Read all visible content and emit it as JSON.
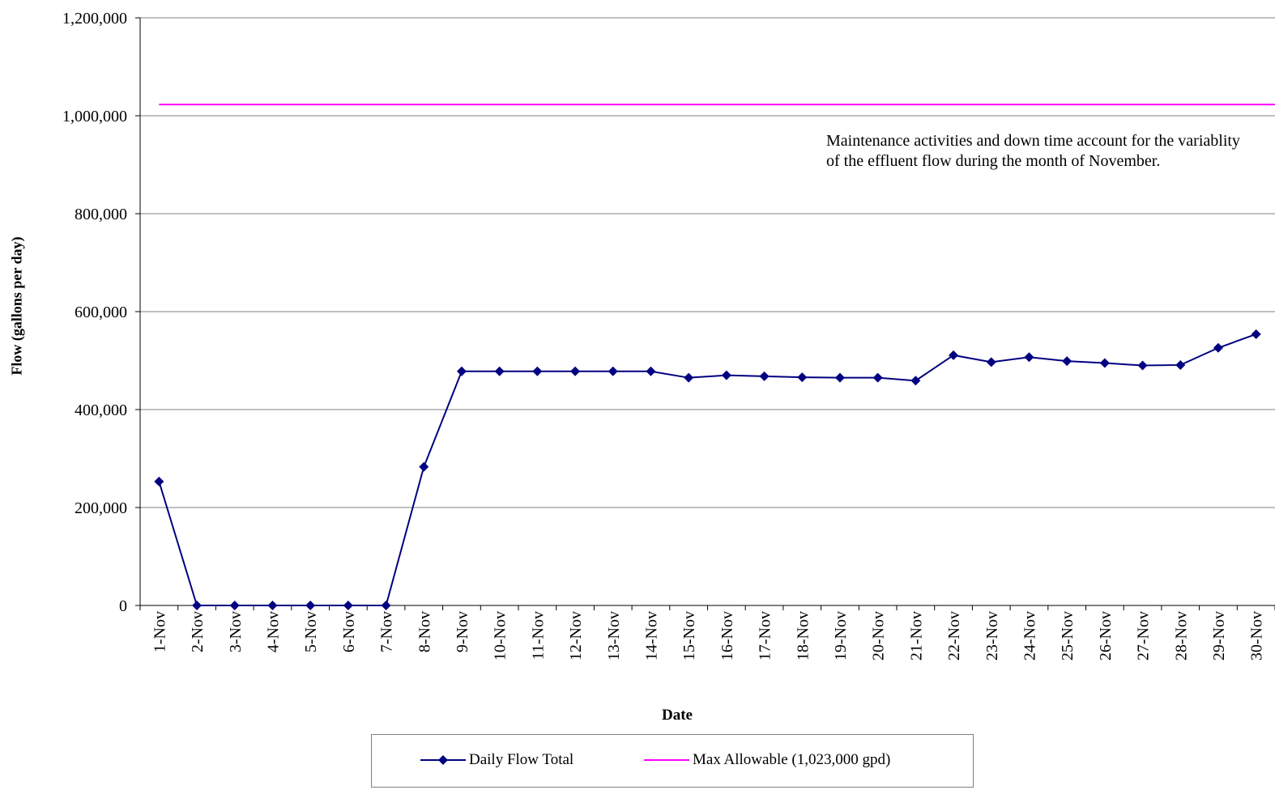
{
  "chart_data": {
    "type": "line",
    "xlabel": "Date",
    "ylabel": "Flow (gallons per day)",
    "ylim": [
      0,
      1200000
    ],
    "yticks": [
      "0",
      "200,000",
      "400,000",
      "600,000",
      "800,000",
      "1,000,000",
      "1,200,000"
    ],
    "ytick_values": [
      0,
      200000,
      400000,
      600000,
      800000,
      1000000,
      1200000
    ],
    "categories": [
      "1-Nov",
      "2-Nov",
      "3-Nov",
      "4-Nov",
      "5-Nov",
      "6-Nov",
      "7-Nov",
      "8-Nov",
      "9-Nov",
      "10-Nov",
      "11-Nov",
      "12-Nov",
      "13-Nov",
      "14-Nov",
      "15-Nov",
      "16-Nov",
      "17-Nov",
      "18-Nov",
      "19-Nov",
      "20-Nov",
      "21-Nov",
      "22-Nov",
      "23-Nov",
      "24-Nov",
      "25-Nov",
      "26-Nov",
      "27-Nov",
      "28-Nov",
      "29-Nov",
      "30-Nov"
    ],
    "grid": "horizontal",
    "legend_position": "bottom",
    "series": [
      {
        "name": "Daily Flow Total",
        "color": "#000080",
        "marker": "diamond",
        "values": [
          253000,
          0,
          0,
          0,
          0,
          0,
          0,
          283000,
          478000,
          478000,
          478000,
          478000,
          478000,
          478000,
          465000,
          470000,
          468000,
          466000,
          465000,
          465000,
          459000,
          511000,
          497000,
          507000,
          499000,
          495000,
          490000,
          491000,
          526000,
          554000
        ]
      },
      {
        "name": "Max Allowable (1,023,000 gpd)",
        "color": "#ff00ff",
        "marker": "none",
        "constant": 1023000
      }
    ],
    "annotation": "Maintenance activities and down time account for the variablity of the effluent flow during the month of November."
  }
}
